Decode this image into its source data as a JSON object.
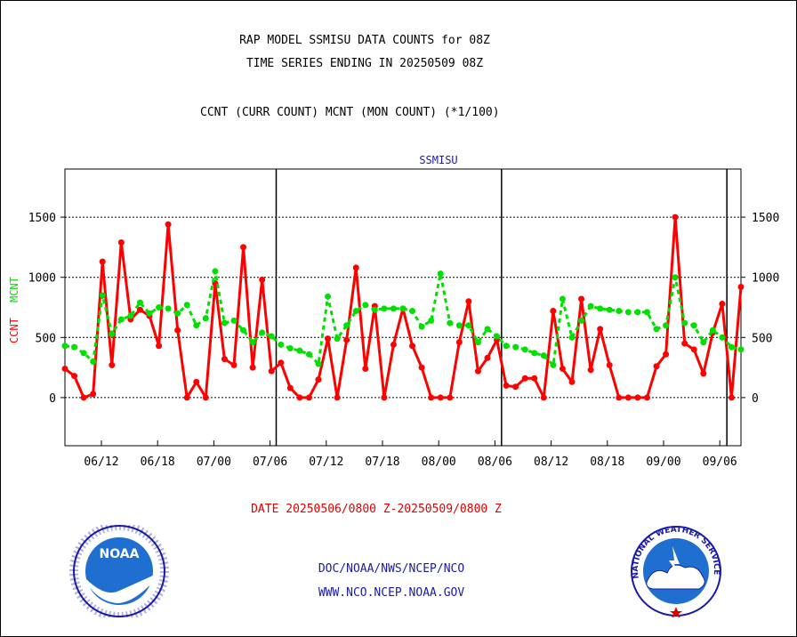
{
  "header": {
    "title_line1": "RAP MODEL SSMISU DATA COUNTS for 08Z",
    "title_line2": "TIME SERIES ENDING IN 20250509 08Z",
    "subtitle": "CCNT (CURR COUNT) MCNT (MON COUNT) (*1/100)"
  },
  "footer": {
    "date_range": "DATE 20250506/0800 Z-20250509/0800 Z",
    "link1": "DOC/NOAA/NWS/NCEP/NCO",
    "link2": "WWW.NCO.NCEP.NOAA.GOV"
  },
  "logos": {
    "noaa_text": "NOAA",
    "nws_text": "NATIONAL WEATHER SERVICE"
  },
  "colors": {
    "ccnt": "#ff0000",
    "mcnt": "#00e000",
    "title": "#1a1aa6",
    "link": "#1a1aa6"
  },
  "chart_data": {
    "type": "line",
    "title": "SSMISU",
    "ylabel_left": [
      "CCNT",
      "MCNT"
    ],
    "ylim": [
      -400,
      1900
    ],
    "yticks": [
      0,
      500,
      1000,
      1500
    ],
    "grid": true,
    "xticks": [
      "06/12",
      "06/18",
      "07/00",
      "07/06",
      "07/12",
      "07/18",
      "08/00",
      "08/06",
      "08/12",
      "08/18",
      "09/00",
      "09/06"
    ],
    "day_separators_after_index": [
      22,
      46,
      70
    ],
    "x_count": 73,
    "series": [
      {
        "name": "CCNT",
        "values": [
          240,
          180,
          0,
          30,
          1130,
          270,
          1290,
          650,
          730,
          680,
          430,
          1440,
          560,
          0,
          130,
          0,
          950,
          320,
          270,
          1250,
          250,
          980,
          220,
          290,
          80,
          0,
          0,
          150,
          490,
          0,
          480,
          1080,
          240,
          760,
          0,
          440,
          740,
          430,
          250,
          0,
          0,
          0,
          460,
          800,
          220,
          330,
          480,
          100,
          90,
          160,
          160,
          0,
          720,
          240,
          130,
          820,
          230,
          570,
          270,
          0,
          0,
          0,
          0,
          260,
          360,
          1500,
          450,
          400,
          200,
          540,
          780,
          0,
          920
        ]
      },
      {
        "name": "MCNT",
        "values": [
          430,
          420,
          370,
          300,
          850,
          530,
          650,
          680,
          790,
          700,
          750,
          740,
          700,
          770,
          600,
          660,
          1050,
          620,
          640,
          560,
          460,
          540,
          510,
          440,
          410,
          390,
          360,
          280,
          840,
          490,
          600,
          720,
          770,
          730,
          740,
          740,
          740,
          720,
          590,
          640,
          1030,
          620,
          600,
          600,
          460,
          570,
          510,
          430,
          420,
          400,
          370,
          350,
          270,
          820,
          500,
          640,
          760,
          740,
          730,
          720,
          710,
          710,
          710,
          570,
          600,
          1000,
          620,
          600,
          460,
          560,
          500,
          420,
          400
        ]
      }
    ]
  }
}
